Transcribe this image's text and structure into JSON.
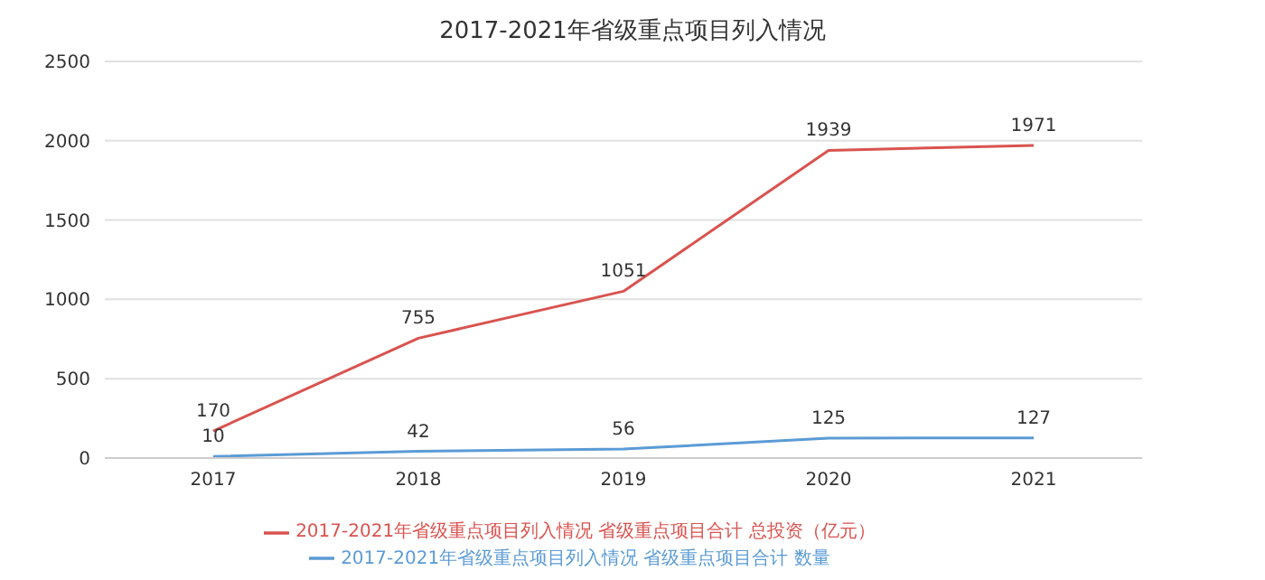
{
  "chart_data": {
    "type": "line",
    "title": "2017-2021年省级重点项目列入情况",
    "categories": [
      "2017",
      "2018",
      "2019",
      "2020",
      "2021"
    ],
    "series": [
      {
        "name": "2017-2021年省级重点项目列入情况  省级重点项目合计  数量",
        "color": "#5b9bd5",
        "values": [
          10,
          42,
          56,
          125,
          127
        ]
      },
      {
        "name": "2017-2021年省级重点项目列入情况  省级重点项目合计  总投资（亿元）",
        "color": "#d9534f",
        "values": [
          170,
          755,
          1051,
          1939,
          1971
        ]
      }
    ],
    "ylim": [
      0,
      2500
    ],
    "yticks": [
      0,
      500,
      1000,
      1500,
      2000,
      2500
    ],
    "grid": "y",
    "legend": "bottom",
    "marker": "none",
    "line_style": "solid",
    "data_labels": true
  }
}
